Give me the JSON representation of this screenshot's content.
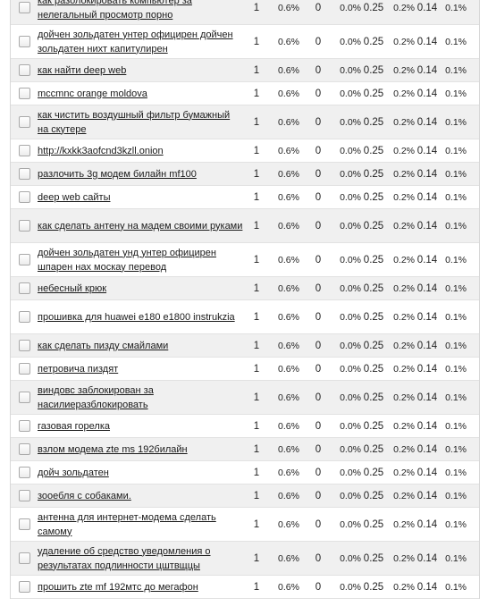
{
  "rows": [
    {
      "keyword": "как разолокировать компьютер за нелегальный просмотр порно",
      "count": "1",
      "pct1": "0.6%",
      "v0": "0",
      "pct2": "0.0%",
      "v1": "0.25",
      "pct3": "0.2%",
      "v2": "0.14",
      "pct4": "0.1%"
    },
    {
      "keyword": "дойчен зольдатен унтер официрен дойчен зольдатен нихт капитулирен",
      "count": "1",
      "pct1": "0.6%",
      "v0": "0",
      "pct2": "0.0%",
      "v1": "0.25",
      "pct3": "0.2%",
      "v2": "0.14",
      "pct4": "0.1%"
    },
    {
      "keyword": "как найти deep web",
      "count": "1",
      "pct1": "0.6%",
      "v0": "0",
      "pct2": "0.0%",
      "v1": "0.25",
      "pct3": "0.2%",
      "v2": "0.14",
      "pct4": "0.1%"
    },
    {
      "keyword": "mccmnc orange moldova",
      "count": "1",
      "pct1": "0.6%",
      "v0": "0",
      "pct2": "0.0%",
      "v1": "0.25",
      "pct3": "0.2%",
      "v2": "0.14",
      "pct4": "0.1%"
    },
    {
      "keyword": "как чистить воздушный фильтр бумажный на скутере",
      "count": "1",
      "pct1": "0.6%",
      "v0": "0",
      "pct2": "0.0%",
      "v1": "0.25",
      "pct3": "0.2%",
      "v2": "0.14",
      "pct4": "0.1%"
    },
    {
      "keyword": "http://kxkk3aofcnd3kzll.onion",
      "count": "1",
      "pct1": "0.6%",
      "v0": "0",
      "pct2": "0.0%",
      "v1": "0.25",
      "pct3": "0.2%",
      "v2": "0.14",
      "pct4": "0.1%"
    },
    {
      "keyword": "разлочить 3g модем билайн mf100",
      "count": "1",
      "pct1": "0.6%",
      "v0": "0",
      "pct2": "0.0%",
      "v1": "0.25",
      "pct3": "0.2%",
      "v2": "0.14",
      "pct4": "0.1%"
    },
    {
      "keyword": "deep web сайты",
      "count": "1",
      "pct1": "0.6%",
      "v0": "0",
      "pct2": "0.0%",
      "v1": "0.25",
      "pct3": "0.2%",
      "v2": "0.14",
      "pct4": "0.1%"
    },
    {
      "keyword": "как сделать антену на мадем своими руками",
      "count": "1",
      "pct1": "0.6%",
      "v0": "0",
      "pct2": "0.0%",
      "v1": "0.25",
      "pct3": "0.2%",
      "v2": "0.14",
      "pct4": "0.1%"
    },
    {
      "keyword": "дойчен зольдатен унд унтер официрен шпарен нах москау перевод",
      "count": "1",
      "pct1": "0.6%",
      "v0": "0",
      "pct2": "0.0%",
      "v1": "0.25",
      "pct3": "0.2%",
      "v2": "0.14",
      "pct4": "0.1%"
    },
    {
      "keyword": "небесный крюк",
      "count": "1",
      "pct1": "0.6%",
      "v0": "0",
      "pct2": "0.0%",
      "v1": "0.25",
      "pct3": "0.2%",
      "v2": "0.14",
      "pct4": "0.1%"
    },
    {
      "keyword": "прошивка для huawei e180 e1800 instrukzia",
      "count": "1",
      "pct1": "0.6%",
      "v0": "0",
      "pct2": "0.0%",
      "v1": "0.25",
      "pct3": "0.2%",
      "v2": "0.14",
      "pct4": "0.1%"
    },
    {
      "keyword": "как сделать пизду смайлами",
      "count": "1",
      "pct1": "0.6%",
      "v0": "0",
      "pct2": "0.0%",
      "v1": "0.25",
      "pct3": "0.2%",
      "v2": "0.14",
      "pct4": "0.1%"
    },
    {
      "keyword": "петровича пиздят",
      "count": "1",
      "pct1": "0.6%",
      "v0": "0",
      "pct2": "0.0%",
      "v1": "0.25",
      "pct3": "0.2%",
      "v2": "0.14",
      "pct4": "0.1%"
    },
    {
      "keyword": "виндовс заблокирован за насилиеразблокировать",
      "count": "1",
      "pct1": "0.6%",
      "v0": "0",
      "pct2": "0.0%",
      "v1": "0.25",
      "pct3": "0.2%",
      "v2": "0.14",
      "pct4": "0.1%"
    },
    {
      "keyword": "газовая горелка",
      "count": "1",
      "pct1": "0.6%",
      "v0": "0",
      "pct2": "0.0%",
      "v1": "0.25",
      "pct3": "0.2%",
      "v2": "0.14",
      "pct4": "0.1%"
    },
    {
      "keyword": "взлом модема zte ms 192билайн",
      "count": "1",
      "pct1": "0.6%",
      "v0": "0",
      "pct2": "0.0%",
      "v1": "0.25",
      "pct3": "0.2%",
      "v2": "0.14",
      "pct4": "0.1%"
    },
    {
      "keyword": "дойч зольдатен",
      "count": "1",
      "pct1": "0.6%",
      "v0": "0",
      "pct2": "0.0%",
      "v1": "0.25",
      "pct3": "0.2%",
      "v2": "0.14",
      "pct4": "0.1%"
    },
    {
      "keyword": "зооебля с собаками.",
      "count": "1",
      "pct1": "0.6%",
      "v0": "0",
      "pct2": "0.0%",
      "v1": "0.25",
      "pct3": "0.2%",
      "v2": "0.14",
      "pct4": "0.1%"
    },
    {
      "keyword": "антенна для интернет-модема сделать самому",
      "count": "1",
      "pct1": "0.6%",
      "v0": "0",
      "pct2": "0.0%",
      "v1": "0.25",
      "pct3": "0.2%",
      "v2": "0.14",
      "pct4": "0.1%"
    },
    {
      "keyword": "удаление об средство уведомления о результатах подлинности цштвщцы",
      "count": "1",
      "pct1": "0.6%",
      "v0": "0",
      "pct2": "0.0%",
      "v1": "0.25",
      "pct3": "0.2%",
      "v2": "0.14",
      "pct4": "0.1%"
    },
    {
      "keyword": "прошить zte mf 192мтс до мегафон",
      "count": "1",
      "pct1": "0.6%",
      "v0": "0",
      "pct2": "0.0%",
      "v1": "0.25",
      "pct3": "0.2%",
      "v2": "0.14",
      "pct4": "0.1%"
    }
  ]
}
